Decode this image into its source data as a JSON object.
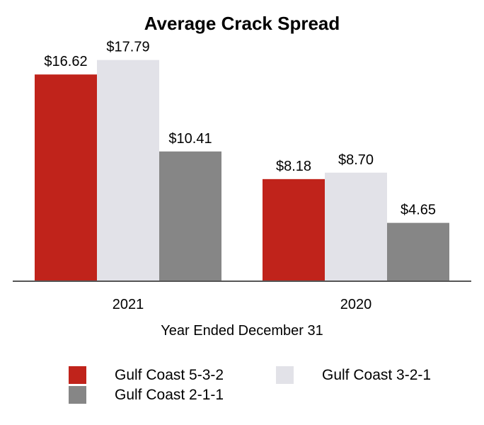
{
  "chart_data": {
    "type": "bar",
    "title": "Average Crack Spread",
    "xlabel": "Year Ended December 31",
    "ylabel": "",
    "categories": [
      "2021",
      "2020"
    ],
    "ylim": [
      0,
      20
    ],
    "series": [
      {
        "name": "Gulf Coast 5-3-2",
        "color": "#c0231b",
        "values": [
          16.62,
          8.18
        ],
        "labels": [
          "$16.62",
          "$8.18"
        ]
      },
      {
        "name": "Gulf Coast 3-2-1",
        "color": "#e2e2e8",
        "values": [
          17.79,
          8.7
        ],
        "labels": [
          "$17.79",
          "$8.70"
        ]
      },
      {
        "name": "Gulf Coast 2-1-1",
        "color": "#868686",
        "values": [
          10.41,
          4.65
        ],
        "labels": [
          "$10.41",
          "$4.65"
        ]
      }
    ],
    "legend_position": "bottom",
    "grid": false
  }
}
